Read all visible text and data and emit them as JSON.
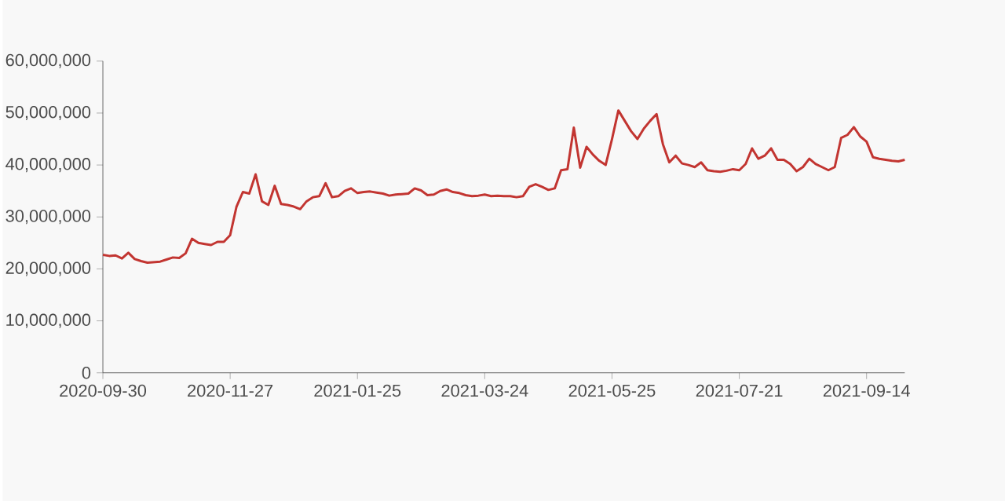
{
  "chart_data": {
    "type": "line",
    "categories": [
      "2020-09-30",
      null,
      null,
      null,
      null,
      null,
      null,
      null,
      null,
      null,
      null,
      null,
      null,
      null,
      null,
      null,
      null,
      null,
      null,
      null,
      "2020-11-27",
      null,
      null,
      null,
      null,
      null,
      null,
      null,
      null,
      null,
      null,
      null,
      null,
      null,
      null,
      null,
      null,
      null,
      null,
      null,
      "2021-01-25",
      null,
      null,
      null,
      null,
      null,
      null,
      null,
      null,
      null,
      null,
      null,
      null,
      null,
      null,
      null,
      null,
      null,
      null,
      null,
      "2021-03-24",
      null,
      null,
      null,
      null,
      null,
      null,
      null,
      null,
      null,
      null,
      null,
      null,
      null,
      null,
      null,
      null,
      null,
      null,
      null,
      "2021-05-25",
      null,
      null,
      null,
      null,
      null,
      null,
      null,
      null,
      null,
      null,
      null,
      null,
      null,
      null,
      null,
      null,
      null,
      null,
      null,
      "2021-07-21",
      null,
      null,
      null,
      null,
      null,
      null,
      null,
      null,
      null,
      null,
      null,
      null,
      null,
      null,
      null,
      null,
      null,
      null,
      null,
      "2021-09-14",
      null,
      null,
      null,
      null,
      null,
      null
    ],
    "series": [
      {
        "color": "#c23531",
        "values": [
          22700000,
          22500000,
          22600000,
          22000000,
          23100000,
          21900000,
          21500000,
          21200000,
          21300000,
          21400000,
          21800000,
          22200000,
          22100000,
          23000000,
          25800000,
          25000000,
          24800000,
          24600000,
          25200000,
          25200000,
          26500000,
          32000000,
          34800000,
          34500000,
          38200000,
          33000000,
          32300000,
          36000000,
          32500000,
          32300000,
          32000000,
          31500000,
          33000000,
          33800000,
          34000000,
          36500000,
          33800000,
          34000000,
          35000000,
          35500000,
          34600000,
          34800000,
          34900000,
          34700000,
          34500000,
          34100000,
          34300000,
          34400000,
          34500000,
          35500000,
          35100000,
          34200000,
          34300000,
          35000000,
          35300000,
          34800000,
          34600000,
          34200000,
          34000000,
          34100000,
          34300000,
          34000000,
          34100000,
          34000000,
          34000000,
          33800000,
          34000000,
          35800000,
          36300000,
          35800000,
          35200000,
          35500000,
          39000000,
          39200000,
          47200000,
          39500000,
          43500000,
          42000000,
          40800000,
          40000000,
          45000000,
          50500000,
          48500000,
          46500000,
          45000000,
          47000000,
          48500000,
          49800000,
          44000000,
          40500000,
          41800000,
          40300000,
          40000000,
          39600000,
          40500000,
          39000000,
          38800000,
          38700000,
          38900000,
          39200000,
          39000000,
          40200000,
          43200000,
          41200000,
          41800000,
          43200000,
          41000000,
          41000000,
          40200000,
          38800000,
          39600000,
          41200000,
          40200000,
          39600000,
          39000000,
          39600000,
          45200000,
          45800000,
          47300000,
          45500000,
          44500000,
          41500000,
          41200000,
          41000000,
          40800000,
          40700000,
          41000000
        ]
      }
    ],
    "ylim": [
      0,
      60000000
    ],
    "yticks": [
      {
        "value": 0,
        "label": "0"
      },
      {
        "value": 10000000,
        "label": "10,000,000"
      },
      {
        "value": 20000000,
        "label": "20,000,000"
      },
      {
        "value": 30000000,
        "label": "30,000,000"
      },
      {
        "value": 40000000,
        "label": "40,000,000"
      },
      {
        "value": 50000000,
        "label": "50,000,000"
      },
      {
        "value": 60000000,
        "label": "60,000,000"
      }
    ],
    "grid": false,
    "legend": false,
    "marker": "none",
    "line_style": "solid"
  }
}
